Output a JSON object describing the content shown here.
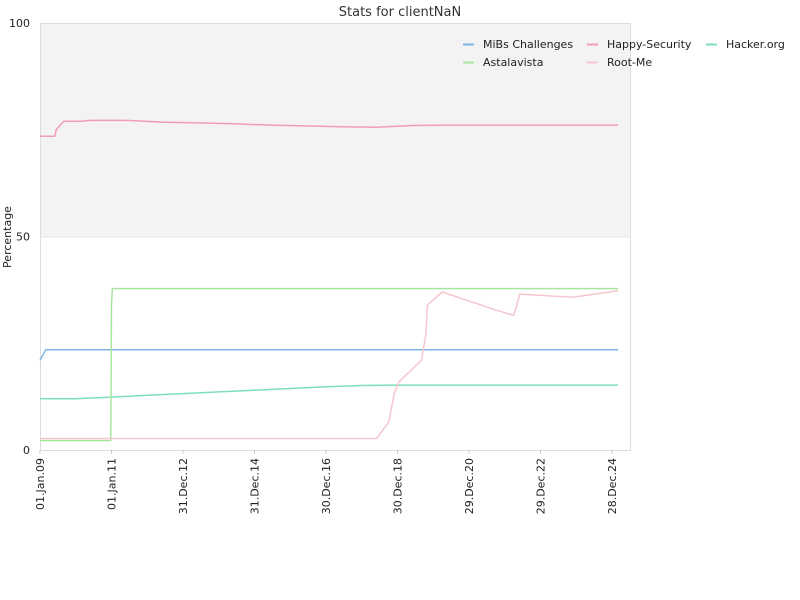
{
  "chart_data": {
    "type": "line",
    "title": "Stats for clientNaN",
    "ylabel": "Percentage",
    "xlabel": "",
    "ylim": [
      0,
      100
    ],
    "yticks": [
      "0",
      "50",
      "100"
    ],
    "xlim": [
      "2009-01-01",
      "2025-06-30"
    ],
    "xticks": [
      {
        "date": "2009-01-01",
        "label": "01.Jan.09"
      },
      {
        "date": "2011-01-01",
        "label": "01.Jan.11"
      },
      {
        "date": "2012-12-31",
        "label": "31.Dec.12"
      },
      {
        "date": "2014-12-31",
        "label": "31.Dec.14"
      },
      {
        "date": "2016-12-30",
        "label": "30.Dec.16"
      },
      {
        "date": "2018-12-30",
        "label": "30.Dec.18"
      },
      {
        "date": "2020-12-29",
        "label": "29.Dec.20"
      },
      {
        "date": "2022-12-29",
        "label": "29.Dec.22"
      },
      {
        "date": "2024-12-28",
        "label": "28.Dec.24"
      }
    ],
    "grid": false,
    "shaded_band": [
      50,
      100
    ],
    "legend": "top-right",
    "series": [
      {
        "name": "MiBs Challenges",
        "color": "#7fb5e6",
        "points": [
          [
            "2009-01-01",
            21
          ],
          [
            "2009-03-01",
            23.5
          ],
          [
            "2025-03-01",
            23.5
          ]
        ]
      },
      {
        "name": "Happy-Security",
        "color": "#f29bbd",
        "points": [
          [
            "2009-01-01",
            73.5
          ],
          [
            "2009-06-01",
            73.5
          ],
          [
            "2009-06-15",
            75
          ],
          [
            "2009-09-01",
            77
          ],
          [
            "2010-03-01",
            77
          ],
          [
            "2010-06-01",
            77.2
          ],
          [
            "2011-06-01",
            77.2
          ],
          [
            "2012-06-01",
            76.8
          ],
          [
            "2013-06-01",
            76.6
          ],
          [
            "2014-06-01",
            76.4
          ],
          [
            "2015-06-01",
            76.1
          ],
          [
            "2016-06-01",
            75.9
          ],
          [
            "2017-06-01",
            75.7
          ],
          [
            "2018-06-01",
            75.6
          ],
          [
            "2019-06-01",
            76
          ],
          [
            "2020-06-01",
            76.1
          ],
          [
            "2025-03-01",
            76.1
          ]
        ]
      },
      {
        "name": "Hacker.org",
        "color": "#7fe0b8",
        "points": [
          [
            "2009-01-01",
            12
          ],
          [
            "2010-01-01",
            12
          ],
          [
            "2011-01-01",
            12.4
          ],
          [
            "2012-01-01",
            12.8
          ],
          [
            "2013-01-01",
            13.2
          ],
          [
            "2014-01-01",
            13.6
          ],
          [
            "2015-01-01",
            14
          ],
          [
            "2016-01-01",
            14.4
          ],
          [
            "2017-01-01",
            14.8
          ],
          [
            "2018-01-01",
            15.1
          ],
          [
            "2019-01-01",
            15.2
          ],
          [
            "2025-03-01",
            15.2
          ]
        ]
      },
      {
        "name": "Astalavista",
        "color": "#a8e6a0",
        "points": [
          [
            "2009-01-01",
            2.2
          ],
          [
            "2010-12-25",
            2.2
          ],
          [
            "2011-01-01",
            34
          ],
          [
            "2011-01-10",
            37.8
          ],
          [
            "2025-03-01",
            37.8
          ]
        ]
      },
      {
        "name": "Root-Me",
        "color": "#f6c6d0",
        "points": [
          [
            "2009-01-01",
            2.7
          ],
          [
            "2018-06-01",
            2.7
          ],
          [
            "2018-10-01",
            6.5
          ],
          [
            "2018-12-01",
            13.5
          ],
          [
            "2019-01-15",
            16
          ],
          [
            "2019-09-01",
            21
          ],
          [
            "2019-10-15",
            27
          ],
          [
            "2019-11-01",
            34
          ],
          [
            "2020-04-01",
            37
          ],
          [
            "2021-09-01",
            33
          ],
          [
            "2022-04-01",
            31.5
          ],
          [
            "2022-06-01",
            36.5
          ],
          [
            "2023-06-01",
            36
          ],
          [
            "2023-12-01",
            35.8
          ],
          [
            "2025-03-01",
            37.3
          ]
        ]
      }
    ]
  }
}
